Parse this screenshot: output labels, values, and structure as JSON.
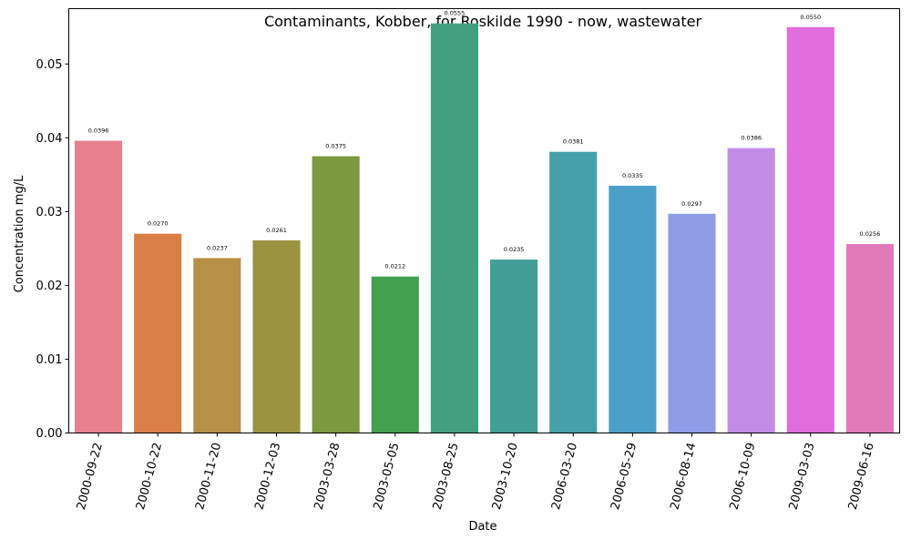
{
  "chart_data": {
    "type": "bar",
    "title": "Contaminants, Kobber, for Roskilde 1990 - now, wastewater",
    "xlabel": "Date",
    "ylabel": "Concentration mg/L",
    "ylim": [
      0,
      0.0575
    ],
    "yticks": [
      0.0,
      0.01,
      0.02,
      0.03,
      0.04,
      0.05
    ],
    "ytick_labels": [
      "0.00",
      "0.01",
      "0.02",
      "0.03",
      "0.04",
      "0.05"
    ],
    "grid": false,
    "categories": [
      "2000-09-22",
      "2000-10-22",
      "2000-11-20",
      "2000-12-03",
      "2003-03-28",
      "2003-05-05",
      "2003-08-25",
      "2003-10-20",
      "2006-03-20",
      "2006-05-29",
      "2006-08-14",
      "2006-10-09",
      "2009-03-03",
      "2009-06-16"
    ],
    "values": [
      0.0396,
      0.027,
      0.0237,
      0.0261,
      0.0375,
      0.0212,
      0.0555,
      0.0235,
      0.0381,
      0.0335,
      0.0297,
      0.0386,
      0.055,
      0.0256
    ],
    "value_labels": [
      "0.0396",
      "0.0270",
      "0.0237",
      "0.0261",
      "0.0375",
      "0.0212",
      "0.0555",
      "0.0235",
      "0.0381",
      "0.0335",
      "0.0297",
      "0.0386",
      "0.0550",
      "0.0256"
    ],
    "colors": [
      "#e8808f",
      "#d97f45",
      "#b78f45",
      "#9a9440",
      "#7b9a40",
      "#42a04e",
      "#42a081",
      "#419f97",
      "#44a0aa",
      "#4ba0ca",
      "#8f9de6",
      "#c08ce6",
      "#e06ddb",
      "#e27ab9"
    ]
  }
}
